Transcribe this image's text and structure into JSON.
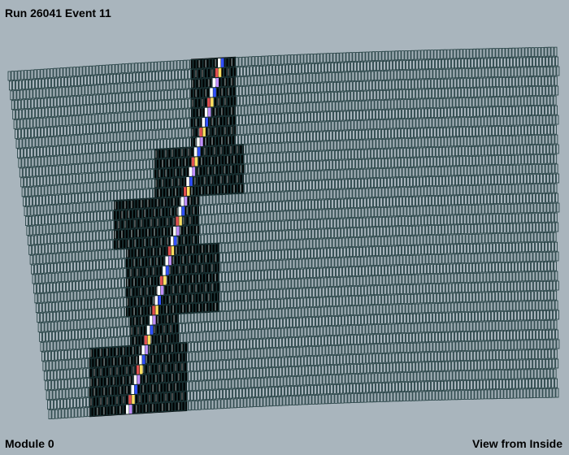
{
  "header": {
    "title": "Run 26041 Event 11"
  },
  "footer": {
    "module": "Module 0",
    "view": "View from Inside"
  }
}
